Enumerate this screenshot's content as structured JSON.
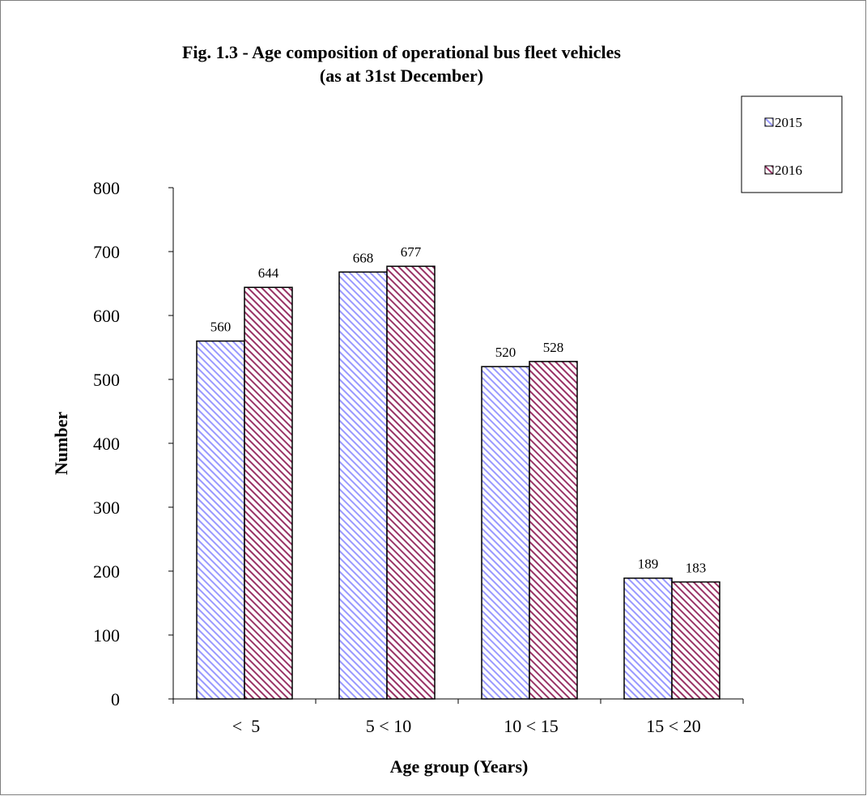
{
  "chart_data": {
    "type": "bar",
    "title": "Fig. 1.3 - Age composition of operational bus fleet vehicles",
    "subtitle": "(as at 31st December)",
    "xlabel": "Age group (Years)",
    "ylabel": "Number",
    "categories": [
      "<  5",
      "5 < 10",
      "10 < 15",
      "15 < 20"
    ],
    "series": [
      {
        "name": "2015",
        "values": [
          560,
          668,
          520,
          189
        ],
        "color": "#9999ff",
        "pattern": "diagonal-hatch"
      },
      {
        "name": "2016",
        "values": [
          644,
          677,
          528,
          183
        ],
        "color": "#993366",
        "pattern": "diagonal-hatch"
      }
    ],
    "ylim": [
      0,
      800
    ],
    "yticks": [
      0,
      100,
      200,
      300,
      400,
      500,
      600,
      700,
      800
    ],
    "grid": false,
    "legend_position": "top-right",
    "data_labels": true
  }
}
